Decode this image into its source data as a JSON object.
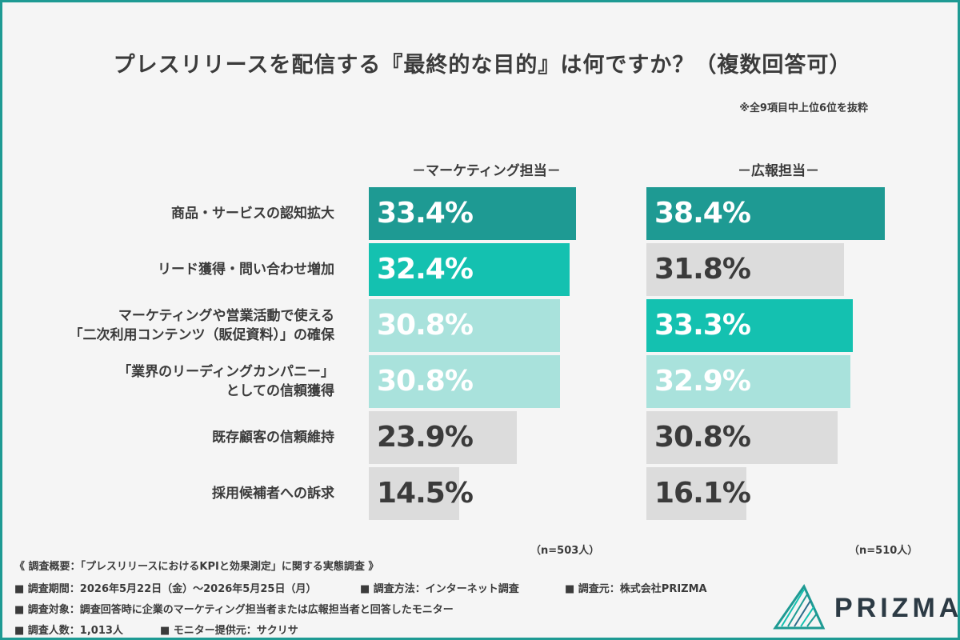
{
  "title": "プレスリリースを配信する『最終的な目的』は何ですか？（複数回答可）",
  "note": "※全9項目中上位6位を抜粋",
  "colors": {
    "primary_dark": "#1e9a93",
    "primary": "#14c1b0",
    "light": "#a9e2dc",
    "gray": "#dcdcdc",
    "text": "#3b3b3b"
  },
  "chart_data": {
    "type": "bar",
    "orientation": "horizontal",
    "categories": [
      [
        "商品・サービスの認知拡大"
      ],
      [
        "リード獲得・問い合わせ増加"
      ],
      [
        "マーケティングや営業活動で使える",
        "「二次利用コンテンツ（販促資料）」の確保"
      ],
      [
        "「業界のリーディングカンパニー」",
        "としての信頼獲得"
      ],
      [
        "既存顧客の信頼維持"
      ],
      [
        "採用候補者への訴求"
      ]
    ],
    "series": [
      {
        "name": "－マーケティング担当－",
        "values": [
          33.4,
          32.4,
          30.8,
          30.8,
          23.9,
          14.5
        ],
        "labels": [
          "33.4%",
          "32.4%",
          "30.8%",
          "30.8%",
          "23.9%",
          "14.5%"
        ],
        "colors": [
          "#1e9a93",
          "#14c1b0",
          "#a9e2dc",
          "#a9e2dc",
          "#dcdcdc",
          "#dcdcdc"
        ],
        "n": "（n=503人）"
      },
      {
        "name": "－広報担当－",
        "values": [
          38.4,
          31.8,
          33.3,
          32.9,
          30.8,
          16.1
        ],
        "labels": [
          "38.4%",
          "31.8%",
          "33.3%",
          "32.9%",
          "30.8%",
          "16.1%"
        ],
        "colors": [
          "#1e9a93",
          "#dcdcdc",
          "#14c1b0",
          "#a9e2dc",
          "#dcdcdc",
          "#dcdcdc"
        ],
        "n": "（n=510人）"
      }
    ]
  },
  "footer": {
    "heading": "《 調査概要：「プレスリリースにおけるKPIと効果測定」に関する実態調査 》",
    "period": "■ 調査期間：2026年5月22日（金）～2026年5月25日（月）",
    "method": "■ 調査方法：インターネット調査",
    "org": "■ 調査元：株式会社PRIZMA",
    "target": "■ 調査対象：調査回答時に企業のマーケティング担当者または広報担当者と回答したモニター",
    "count": "■ 調査人数：1,013人",
    "provider": "■ モニター提供元：サクリサ"
  },
  "logo": {
    "text": "PRIZMA"
  }
}
